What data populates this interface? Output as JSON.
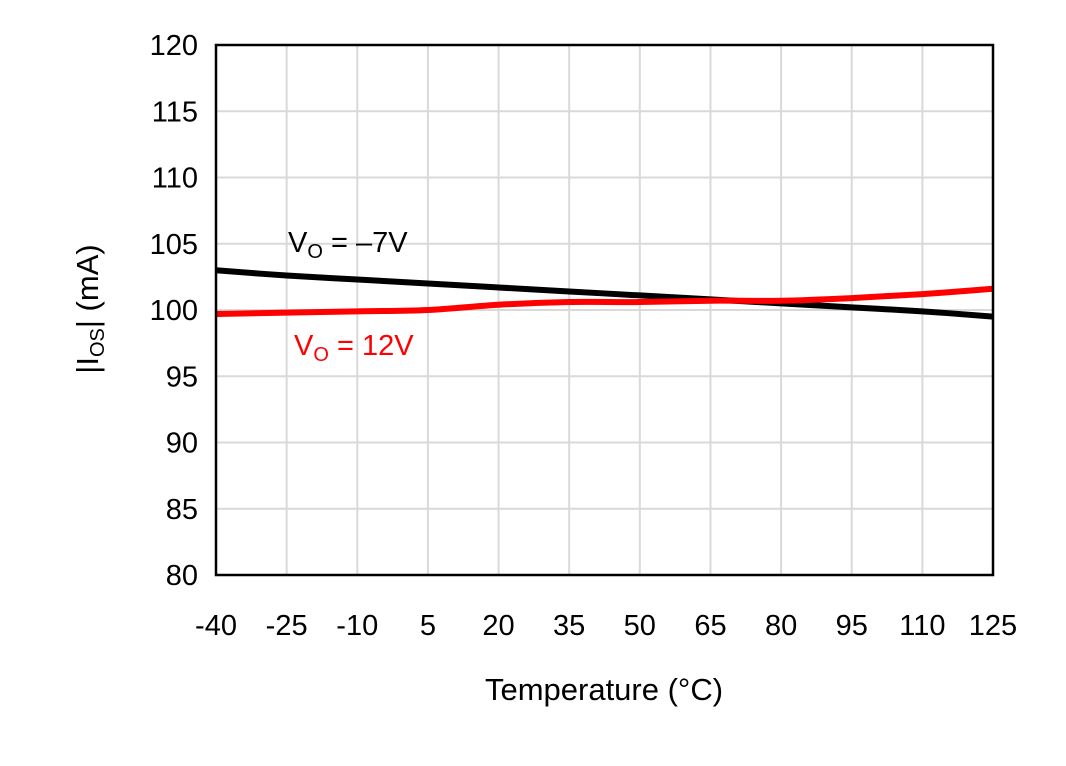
{
  "chart_data": {
    "type": "line",
    "title": "",
    "xlabel": "Temperature (°C)",
    "ylabel_parts": [
      "|I",
      "OS",
      "| (mA)"
    ],
    "x": [
      -40,
      -25,
      -10,
      5,
      20,
      35,
      50,
      65,
      80,
      95,
      110,
      125
    ],
    "xticks": [
      "-40",
      "-25",
      "-10",
      "5",
      "20",
      "35",
      "50",
      "65",
      "80",
      "95",
      "110",
      "125"
    ],
    "yticks": [
      "80",
      "85",
      "90",
      "95",
      "100",
      "105",
      "110",
      "115",
      "120"
    ],
    "xlim": [
      -40,
      125
    ],
    "ylim": [
      80,
      120
    ],
    "grid": true,
    "series": [
      {
        "label_parts": [
          "V",
          "O",
          " = –7V"
        ],
        "color": "#000000",
        "values": [
          103.0,
          102.6,
          102.3,
          102.0,
          101.7,
          101.4,
          101.1,
          100.8,
          100.5,
          100.2,
          99.9,
          99.5
        ]
      },
      {
        "label_parts": [
          "V",
          "O",
          " = 12V"
        ],
        "color": "#ff0000",
        "values": [
          99.7,
          99.8,
          99.9,
          100.0,
          100.4,
          100.6,
          100.6,
          100.7,
          100.7,
          100.9,
          101.2,
          101.6
        ]
      }
    ]
  }
}
